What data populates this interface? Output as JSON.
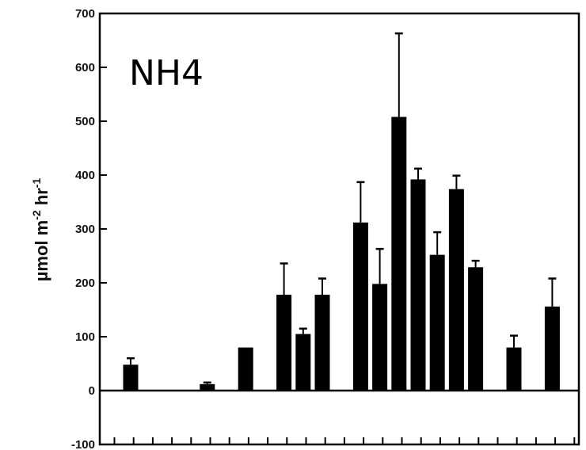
{
  "chart_data": {
    "type": "bar",
    "title": "",
    "xlabel": "",
    "ylabel": "µmol m⁻² hr⁻¹",
    "ylabel_parts": {
      "main": "µmol m",
      "exp1": "-2",
      "mid": " hr",
      "exp2": "-1"
    },
    "annotation": "NH4",
    "ylim": [
      -100,
      700
    ],
    "yticks": [
      "700",
      "600",
      "500",
      "400",
      "300",
      "200",
      "100",
      "0",
      "-100"
    ],
    "x_tick_count": 25,
    "grid": false,
    "legend": "none",
    "bar_color": "#000000",
    "bars": [
      {
        "slot": 0,
        "value": 48,
        "error": 12
      },
      {
        "slot": 4,
        "value": 12,
        "error": 3
      },
      {
        "slot": 6,
        "value": 80,
        "error": 0
      },
      {
        "slot": 8,
        "value": 178,
        "error": 58
      },
      {
        "slot": 9,
        "value": 105,
        "error": 10
      },
      {
        "slot": 10,
        "value": 178,
        "error": 30
      },
      {
        "slot": 12,
        "value": 312,
        "error": 75
      },
      {
        "slot": 13,
        "value": 198,
        "error": 65
      },
      {
        "slot": 14,
        "value": 508,
        "error": 155
      },
      {
        "slot": 15,
        "value": 392,
        "error": 20
      },
      {
        "slot": 16,
        "value": 252,
        "error": 42
      },
      {
        "slot": 17,
        "value": 374,
        "error": 25
      },
      {
        "slot": 18,
        "value": 229,
        "error": 12
      },
      {
        "slot": 20,
        "value": 80,
        "error": 22
      },
      {
        "slot": 22,
        "value": 156,
        "error": 52
      }
    ]
  }
}
